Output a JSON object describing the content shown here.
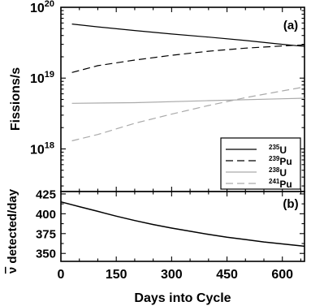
{
  "chart_data": [
    {
      "type": "line",
      "panel_label": "(a)",
      "ylabel": "Fissions/s",
      "yscale": "log",
      "ylim": [
        2.5e+17,
        1e+20
      ],
      "xlim": [
        0,
        660
      ],
      "y_ticklabels": [
        {
          "value": 1e+18,
          "base": "10",
          "exp": "18"
        },
        {
          "value": 1e+19,
          "base": "10",
          "exp": "19"
        },
        {
          "value": 1e+20,
          "base": "10",
          "exp": "20"
        }
      ],
      "legend_position": "lower-right",
      "series": [
        {
          "name_sup": "235",
          "name": "U",
          "color": "#000000",
          "dash": "solid",
          "x": [
            30,
            100,
            200,
            300,
            400,
            500,
            600,
            660
          ],
          "y": [
            5.8e+19,
            5.3e+19,
            4.7e+19,
            4.2e+19,
            3.8e+19,
            3.4e+19,
            3e+19,
            2.8e+19
          ]
        },
        {
          "name_sup": "239",
          "name": "Pu",
          "color": "#000000",
          "dash": "dashed",
          "x": [
            30,
            100,
            200,
            300,
            400,
            500,
            600,
            660
          ],
          "y": [
            1.2e+19,
            1.5e+19,
            1.8e+19,
            2.1e+19,
            2.4e+19,
            2.65e+19,
            2.85e+19,
            2.95e+19
          ]
        },
        {
          "name_sup": "238",
          "name": "U",
          "color": "#aaaaaa",
          "dash": "solid",
          "x": [
            30,
            200,
            400,
            600,
            660
          ],
          "y": [
            4.4e+18,
            4.5e+18,
            4.8e+18,
            5.1e+18,
            5.2e+18
          ]
        },
        {
          "name_sup": "241",
          "name": "Pu",
          "color": "#aaaaaa",
          "dash": "dashed",
          "x": [
            30,
            100,
            200,
            300,
            400,
            500,
            600,
            660
          ],
          "y": [
            1.3e+18,
            1.6e+18,
            2.3e+18,
            3.1e+18,
            4.1e+18,
            5.3e+18,
            6.6e+18,
            7.5e+18
          ]
        }
      ]
    },
    {
      "type": "line",
      "panel_label": "(b)",
      "ylabel_parts": {
        "nu": "ν",
        "rest": " detected/day"
      },
      "ylim": [
        340,
        428
      ],
      "xlim": [
        0,
        660
      ],
      "y_ticks": [
        350,
        375,
        400,
        425
      ],
      "xlabel": "Days into Cycle",
      "x_ticks": [
        0,
        150,
        300,
        450,
        600
      ],
      "series": [
        {
          "color": "#000000",
          "dash": "solid",
          "x": [
            0,
            50,
            100,
            150,
            200,
            250,
            300,
            350,
            400,
            450,
            500,
            550,
            600,
            660
          ],
          "y": [
            415,
            409,
            403,
            397,
            391.5,
            386.5,
            382,
            378,
            374,
            370.5,
            367.5,
            364.5,
            362,
            359
          ]
        }
      ]
    }
  ]
}
